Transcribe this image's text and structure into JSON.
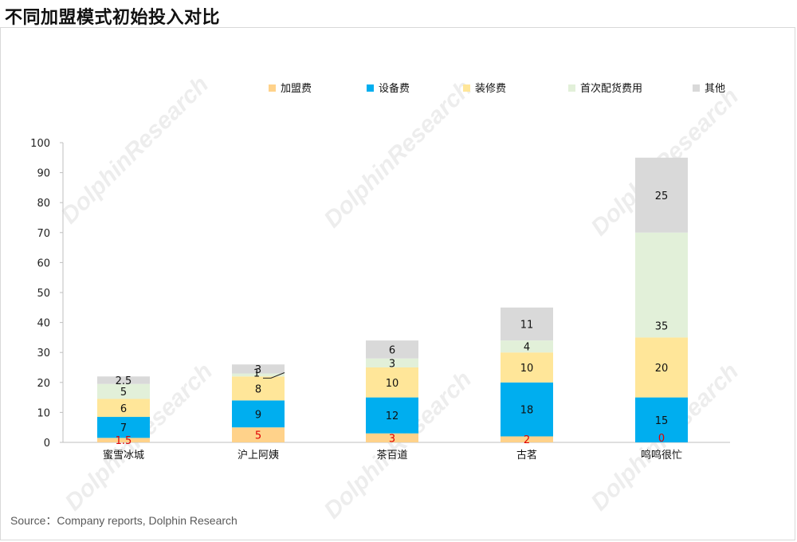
{
  "title": "不同加盟模式初始投入对比",
  "source": "Source：Company reports, Dolphin Research",
  "watermark": "DolphinResearch",
  "chart_data": {
    "type": "bar",
    "stacked": true,
    "categories": [
      "蜜雪冰城",
      "沪上阿姨",
      "茶百道",
      "古茗",
      "鸣鸣很忙"
    ],
    "ylim": [
      0,
      100
    ],
    "yticks": [
      0,
      10,
      20,
      30,
      40,
      50,
      60,
      70,
      80,
      90,
      100
    ],
    "legend_position": "top",
    "grid": false,
    "series": [
      {
        "name": "加盟费",
        "color": "#FFD28A",
        "label_color": "#E00000",
        "values": [
          1.5,
          5,
          3,
          2,
          0
        ]
      },
      {
        "name": "设备费",
        "color": "#00AEEF",
        "label_color": "#111111",
        "values": [
          7,
          9,
          12,
          18,
          15
        ]
      },
      {
        "name": "装修费",
        "color": "#FFE699",
        "label_color": "#111111",
        "values": [
          6,
          8,
          10,
          10,
          20
        ]
      },
      {
        "name": "首次配货费用",
        "color": "#E2F0D9",
        "label_color": "#111111",
        "values": [
          5,
          1,
          3,
          4,
          35
        ]
      },
      {
        "name": "其他",
        "color": "#D9D9D9",
        "label_color": "#111111",
        "values": [
          2.5,
          3,
          6,
          11,
          25
        ]
      }
    ]
  }
}
